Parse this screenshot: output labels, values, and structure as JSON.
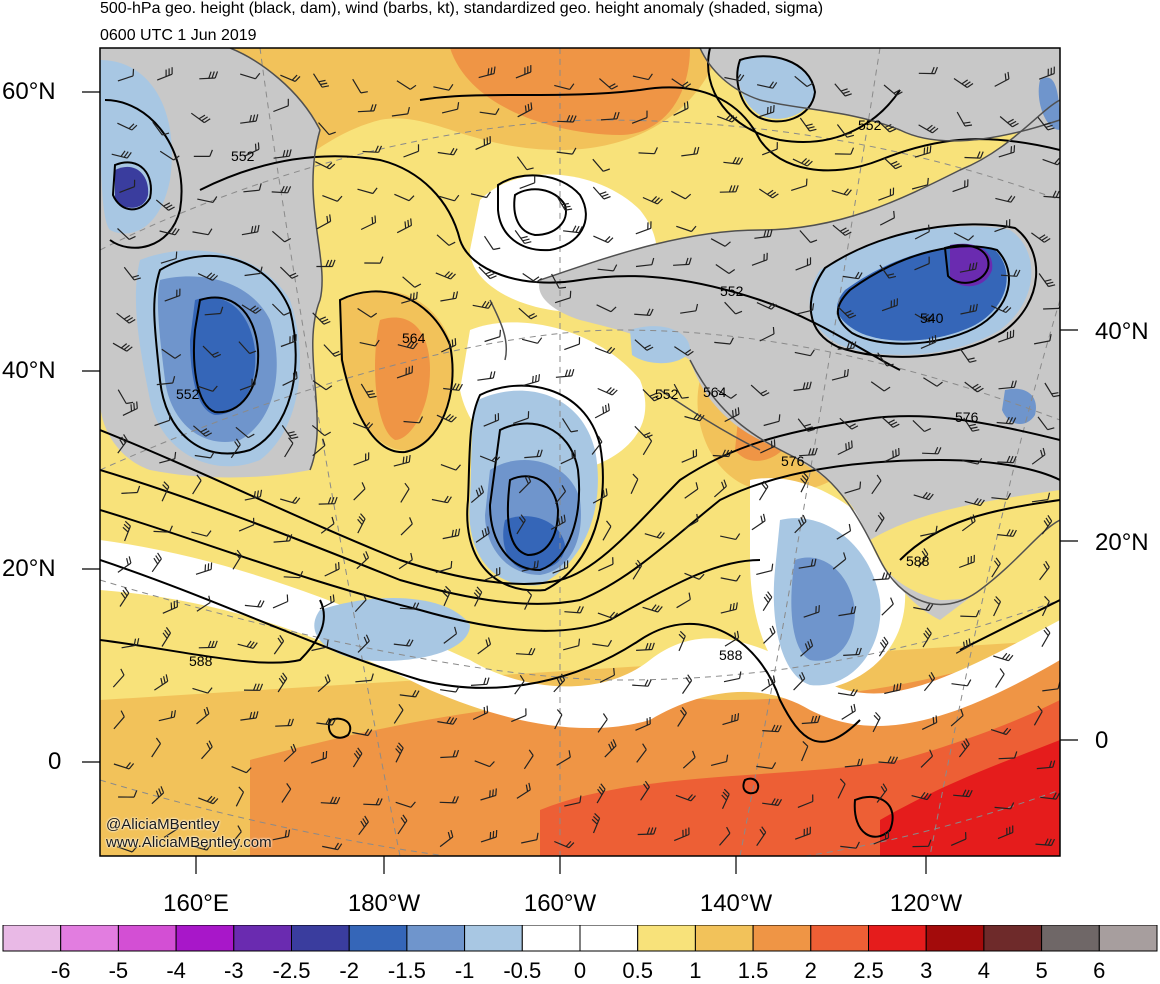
{
  "title_line_1": "500-hPa geo. height (black, dam), wind (barbs, kt), standardized geo. height anomaly (shaded, sigma)",
  "title_line_2": "0600 UTC 1 Jun 2019",
  "lat_labels_left": [
    "60°N",
    "40°N",
    "20°N",
    "0"
  ],
  "lat_labels_right": [
    "40°N",
    "20°N",
    "0"
  ],
  "lon_labels": [
    "160°E",
    "180°W",
    "160°W",
    "140°W",
    "120°W"
  ],
  "contour_labels": [
    "552",
    "552",
    "552",
    "552",
    "564",
    "552",
    "564",
    "540",
    "576",
    "576",
    "588",
    "588",
    "588"
  ],
  "credit_line_1": "@AliciaMBentley",
  "credit_line_2": "www.AliciaMBentley.com",
  "colorbar": {
    "labels": [
      "-6",
      "-5",
      "-4",
      "-3",
      "-2.5",
      "-2",
      "-1.5",
      "-1",
      "-0.5",
      "0",
      "0.5",
      "1",
      "1.5",
      "2",
      "2.5",
      "3",
      "4",
      "5",
      "6"
    ],
    "colors": [
      "#e9b9e6",
      "#e27de0",
      "#d34fd4",
      "#a817c9",
      "#6a2bb0",
      "#3a3d9e",
      "#3566b8",
      "#6f95cc",
      "#a8c7e3",
      "#ffffff",
      "#ffffff",
      "#f8e27a",
      "#f2c25a",
      "#ef9545",
      "#ed5f35",
      "#e51c1c",
      "#a30b0b",
      "#6e2a2a",
      "#6f6767",
      "#a79e9e"
    ]
  },
  "colors": {
    "land": "#c8c8c8",
    "negative_anomaly": "#a8c7e3",
    "positive_anomaly": "#f2c25a",
    "contour": "#000000"
  }
}
